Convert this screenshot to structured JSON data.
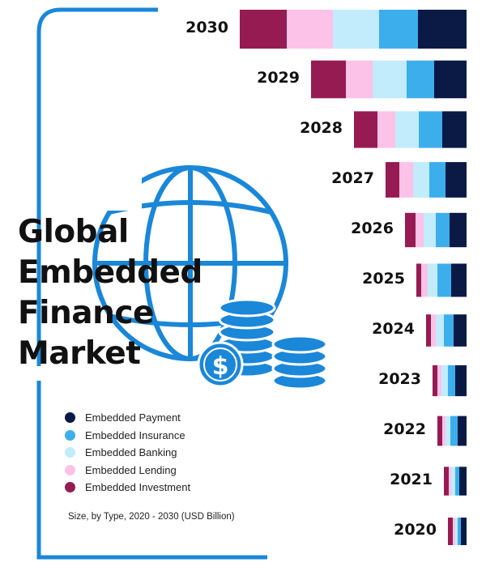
{
  "title_lines": [
    "Global",
    "Embedded",
    "Finance",
    "Market"
  ],
  "caption": "Size, by Type, 2020 - 2030 (USD Billion)",
  "colors": {
    "frame": "#1a87d8",
    "globe": "#1a87d8",
    "coin_dark": "#1a6fc0"
  },
  "icons": [
    "globe-icon",
    "coin-stack-icon",
    "dollar-coin-icon"
  ],
  "chart_data": {
    "type": "bar",
    "orientation": "horizontal",
    "stacked": true,
    "categories": [
      "2030",
      "2029",
      "2028",
      "2027",
      "2026",
      "2025",
      "2024",
      "2023",
      "2022",
      "2021",
      "2020"
    ],
    "legend_position": "bottom-left",
    "series": [
      {
        "name": "Embedded Payment",
        "color": "#0a1a45",
        "values": [
          60,
          40,
          30,
          26,
          21,
          19,
          16,
          14,
          11,
          9,
          7
        ]
      },
      {
        "name": "Embedded Insurance",
        "color": "#3daeec",
        "values": [
          48,
          34,
          29,
          20,
          17,
          17,
          12,
          9,
          9,
          5,
          4
        ]
      },
      {
        "name": "Embedded Banking",
        "color": "#c2ecfb",
        "values": [
          57,
          42,
          29,
          20,
          15,
          12,
          10,
          8,
          6,
          5,
          3
        ]
      },
      {
        "name": "Embedded Lending",
        "color": "#fcc2e8",
        "values": [
          57,
          33,
          22,
          17,
          10,
          8,
          6,
          5,
          4,
          3,
          3
        ]
      },
      {
        "name": "Embedded Investment",
        "color": "#961b52",
        "values": [
          58,
          43,
          29,
          17,
          13,
          6,
          6,
          6,
          6,
          6,
          6
        ]
      }
    ]
  }
}
